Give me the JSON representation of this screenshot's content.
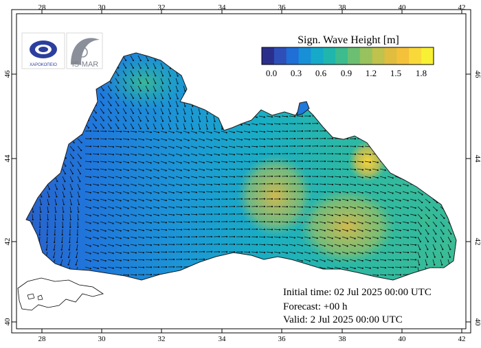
{
  "colorbar": {
    "title": "Sign. Wave Height [m]",
    "ticks": [
      "0.0",
      "0.3",
      "0.6",
      "0.9",
      "1.2",
      "1.5",
      "1.8"
    ],
    "colors": [
      "#2b2f8c",
      "#2f4fb8",
      "#1f6fd6",
      "#1890d8",
      "#16a9c9",
      "#20b6ad",
      "#3dbc8e",
      "#6cbf72",
      "#97c25e",
      "#bfc24c",
      "#e0bd3f",
      "#f4c23a",
      "#f9d93a",
      "#f8f034"
    ]
  },
  "axes": {
    "lon_labels": [
      "28",
      "30",
      "32",
      "34",
      "36",
      "38",
      "40",
      "42"
    ],
    "lat_labels": [
      "40",
      "42",
      "44",
      "46"
    ]
  },
  "info": {
    "initial_time": "Initial time: 02 Jul 2025 00:00 UTC",
    "forecast": "Forecast: +00 h",
    "valid": "Valid:  2 Jul 2025 00:00 UTC"
  },
  "logos": {
    "left_text": "ΧΑΡΟΚΟΠΕΙΟ",
    "right_text": "IS-MAR"
  },
  "theme": {
    "sea_base": "#1f72d6",
    "land": "#ffffff"
  }
}
